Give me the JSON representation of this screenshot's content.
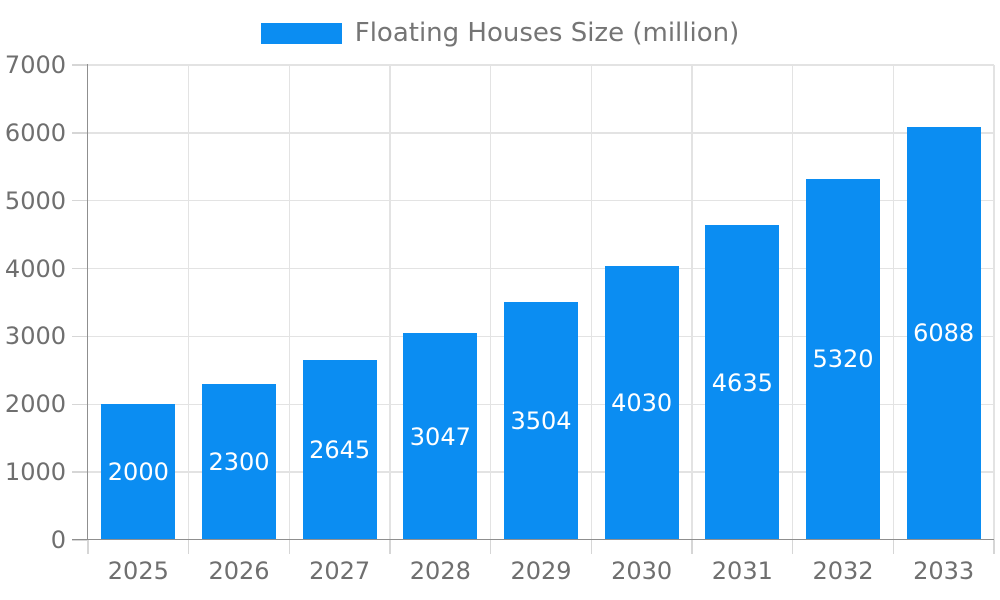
{
  "chart_data": {
    "type": "bar",
    "legend": "Floating Houses Size (million)",
    "legend_position": "top",
    "categories": [
      "2025",
      "2026",
      "2027",
      "2028",
      "2029",
      "2030",
      "2031",
      "2032",
      "2033"
    ],
    "series": [
      {
        "name": "Floating Houses Size (million)",
        "values": [
          2000,
          2300,
          2645,
          3047,
          3504,
          4030,
          4635,
          5320,
          6088
        ]
      }
    ],
    "bar_value_labels": [
      "2000",
      "2300",
      "2645",
      "3047",
      "3504",
      "4030",
      "4635",
      "5320",
      "6088"
    ],
    "xlabel": "",
    "ylabel": "",
    "ylim": [
      0,
      7000
    ],
    "yticks": [
      0,
      1000,
      2000,
      3000,
      4000,
      5000,
      6000,
      7000
    ],
    "ytick_labels": [
      "0",
      "1000",
      "2000",
      "3000",
      "4000",
      "5000",
      "6000",
      "7000"
    ],
    "grid": true
  },
  "colors": {
    "bar": "#0b8df2",
    "bar_value_text": "#ffffff",
    "axis_line": "#8f8f8f",
    "grid_line": "#e3e3e3",
    "tick_line": "#d6d6d6",
    "axis_text": "#6f6f6f",
    "legend_text": "#757575",
    "background": "#ffffff"
  }
}
